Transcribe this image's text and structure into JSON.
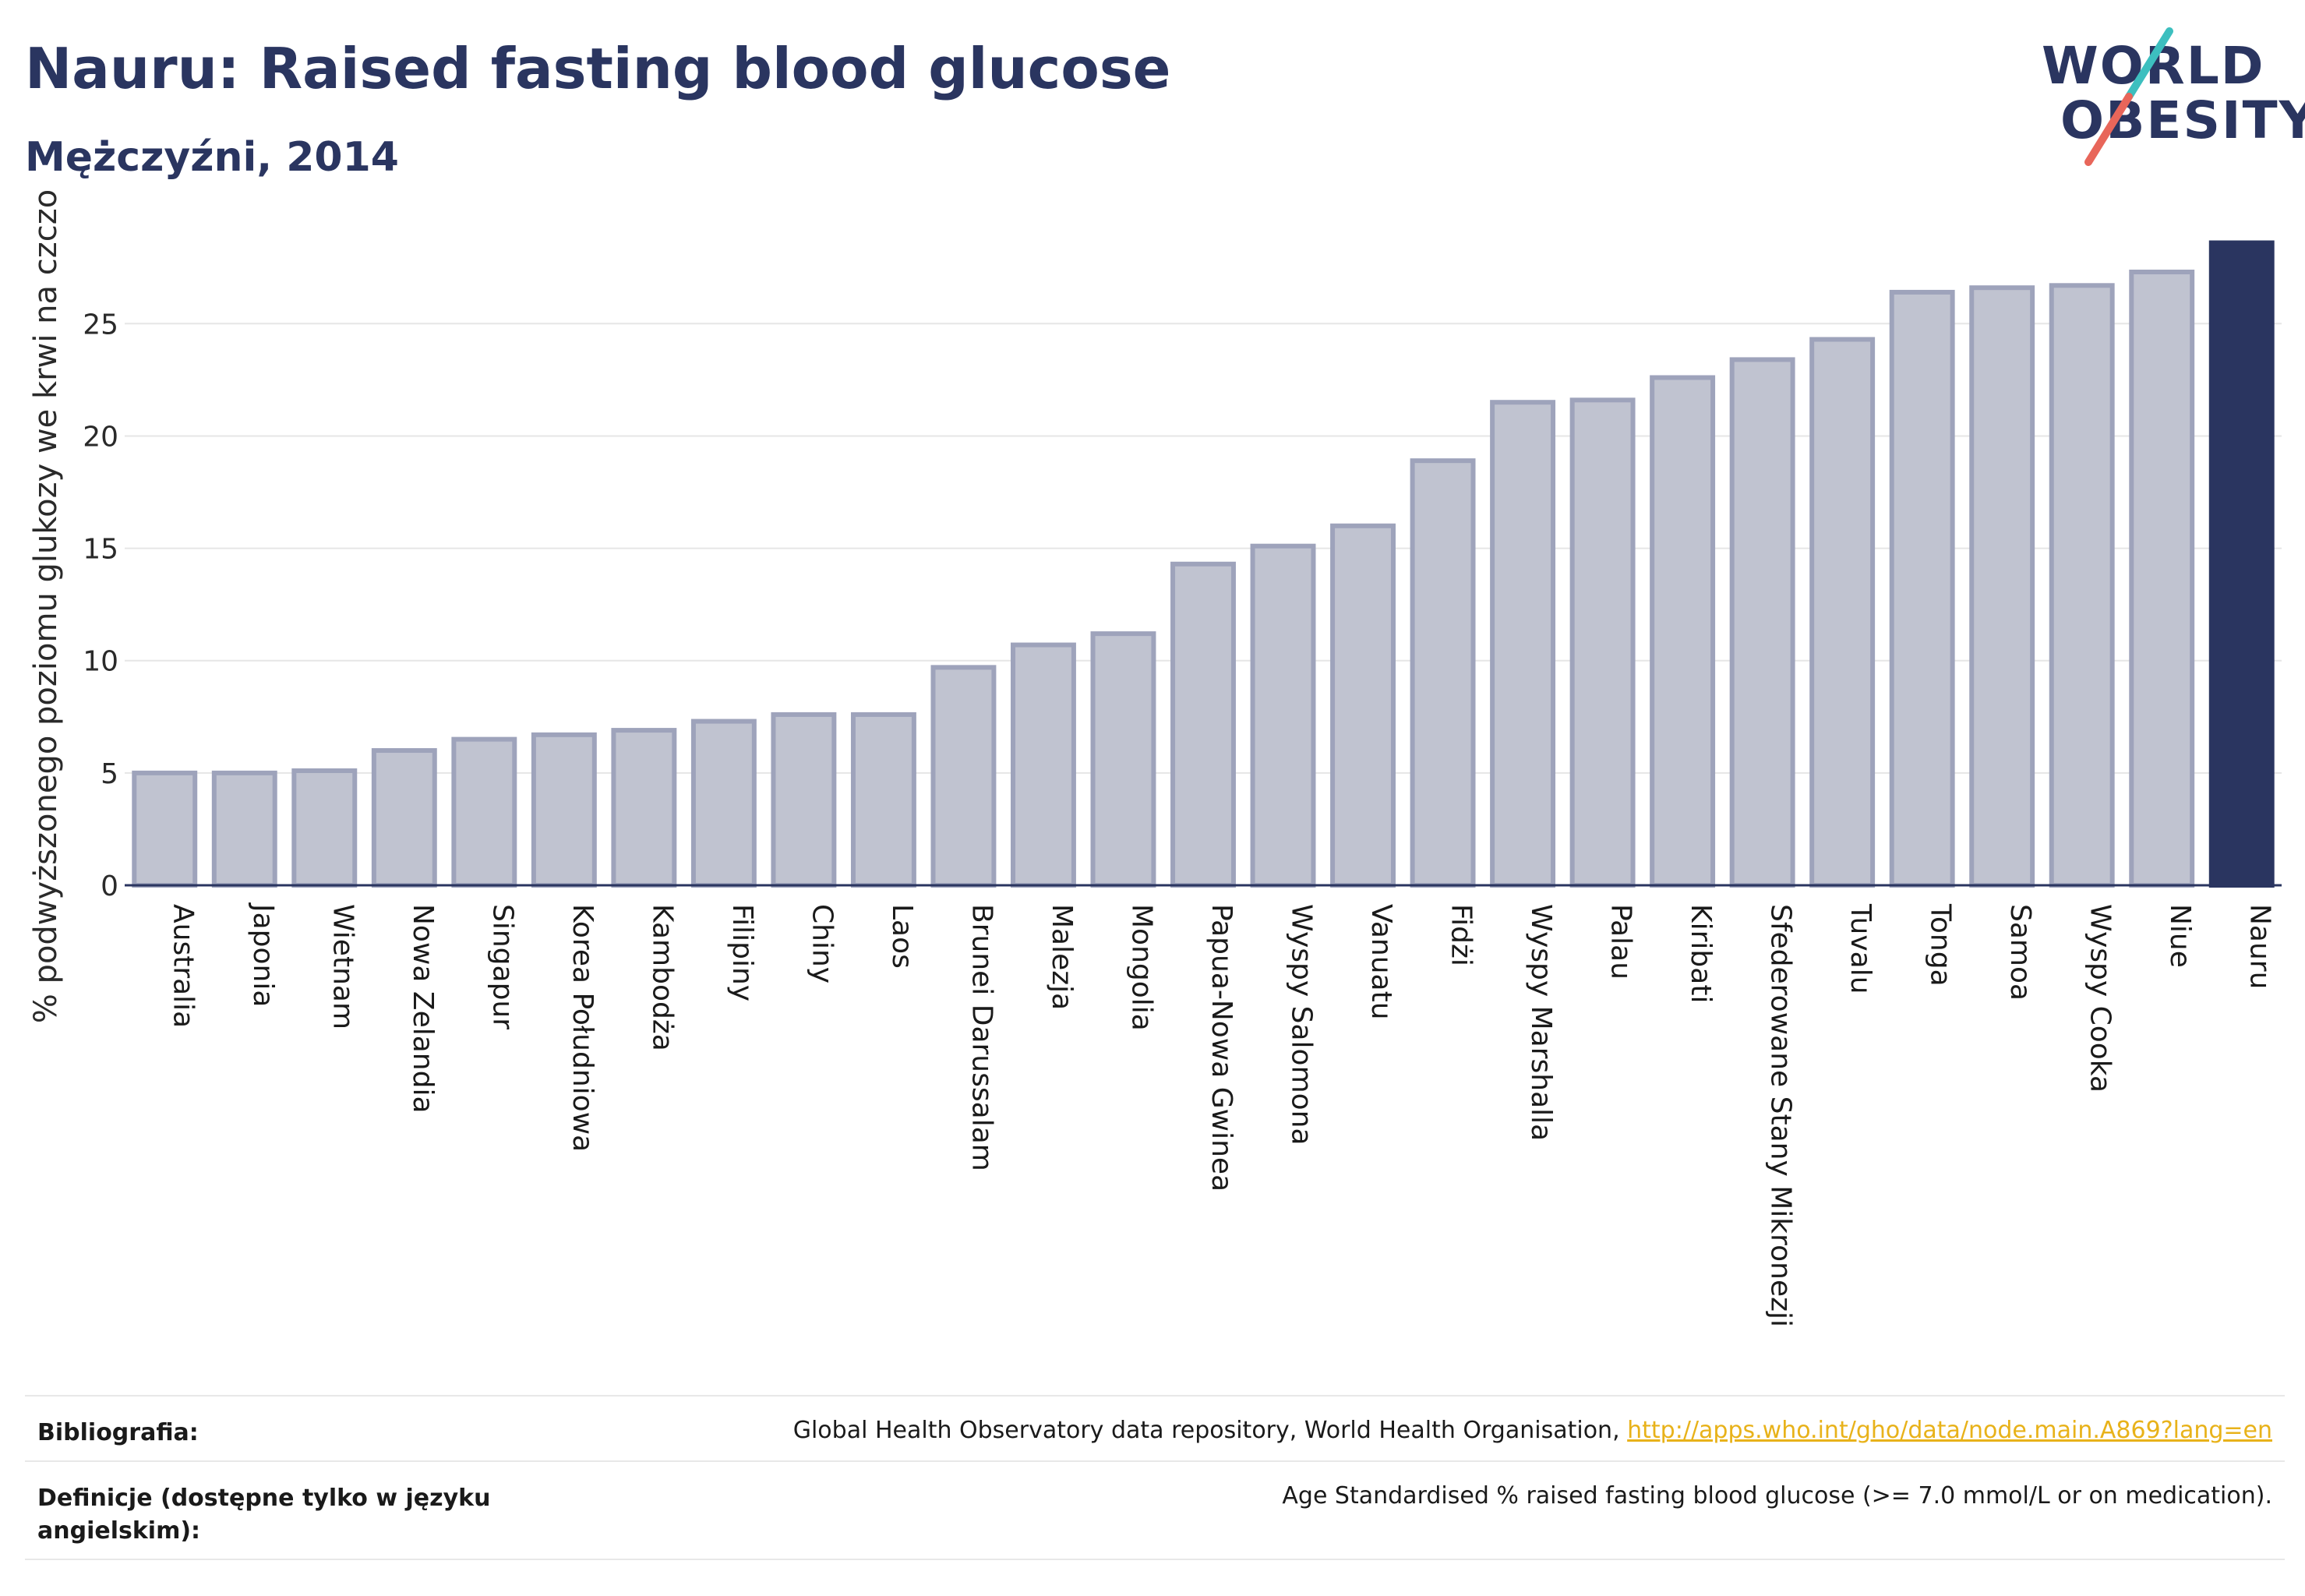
{
  "header": {
    "title": "Nauru: Raised fasting blood glucose",
    "subtitle": "Mężczyźni, 2014"
  },
  "logo": {
    "line1": "WORLD",
    "line2": "OBESITY",
    "colors": {
      "text": "#2a3560",
      "slash_top": "#3dbfbf",
      "slash_bottom": "#e8665a"
    }
  },
  "colors": {
    "bar_fill": "#c0c3d0",
    "bar_stroke": "#9ea3bb",
    "highlight": "#2a3560",
    "grid": "#e6e6e6",
    "axis": "#2a3560"
  },
  "chart_data": {
    "type": "bar",
    "title": "Nauru: Raised fasting blood glucose",
    "subtitle": "Mężczyźni, 2014",
    "ylabel": "% podwyższonego poziomu glukozy we krwi na czczo",
    "xlabel": "",
    "ylim": [
      0,
      29
    ],
    "yticks": [
      0,
      5,
      10,
      15,
      20,
      25
    ],
    "grid": true,
    "highlight": "Nauru",
    "categories": [
      "Australia",
      "Japonia",
      "Wietnam",
      "Nowa Zelandia",
      "Singapur",
      "Korea Południowa",
      "Kambodża",
      "Filipiny",
      "Chiny",
      "Laos",
      "Brunei Darussalam",
      "Malezja",
      "Mongolia",
      "Papua-Nowa Gwinea",
      "Wyspy Salomona",
      "Vanuatu",
      "Fidżi",
      "Wyspy Marshalla",
      "Palau",
      "Kiribati",
      "Sfederowane Stany Mikronezji",
      "Tuvalu",
      "Tonga",
      "Samoa",
      "Wyspy Cooka",
      "Niue",
      "Nauru"
    ],
    "values": [
      5.0,
      5.0,
      5.1,
      6.0,
      6.5,
      6.7,
      6.9,
      7.3,
      7.6,
      7.6,
      9.7,
      10.7,
      11.2,
      14.3,
      15.1,
      16.0,
      18.9,
      21.5,
      21.6,
      22.6,
      23.4,
      24.3,
      26.4,
      26.6,
      26.7,
      27.3,
      28.6
    ]
  },
  "footer": {
    "bibliography_label": "Bibliografia:",
    "bibliography_text": "Global Health Observatory data repository, World Health Organisation, ",
    "bibliography_link": "http://apps.who.int/gho/data/node.main.A869?lang=en",
    "definitions_label": "Definicje (dostępne tylko w języku angielskim):",
    "definitions_text": "Age Standardised % raised fasting blood glucose (>= 7.0 mmol/L or on medication)."
  }
}
